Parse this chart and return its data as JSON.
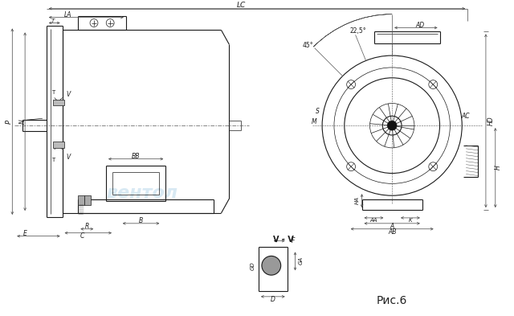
{
  "bg_color": "#ffffff",
  "line_color": "#1a1a1a",
  "fig_caption": "Рис.6",
  "watermark_text": "вентол",
  "watermark_color": "#b8d8ea",
  "section_label": "V - V"
}
